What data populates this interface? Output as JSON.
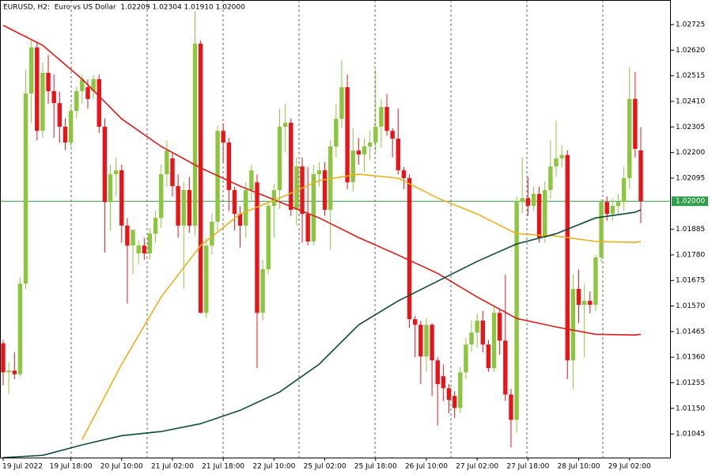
{
  "chart_data": {
    "type": "candlestick",
    "title": "EURUSD, H2:  Euro vs US Dollar  1.02209 1.02304 1.01910 1.02000",
    "up_color": "#8cc63f",
    "down_color": "#e8141a",
    "grid": true,
    "ylim": [
      1.00948,
      1.02826
    ],
    "yticks": [
      1.02725,
      {
        "value": 1.0262,
        "label": "1.02620"
      },
      1.02515,
      {
        "value": 1.0241,
        "label": "1.02410"
      },
      1.02305,
      {
        "value": 1.022,
        "label": "1.02200"
      },
      1.02095,
      1.01885,
      {
        "value": 1.0178,
        "label": "1.01780"
      },
      1.01675,
      {
        "value": 1.0157,
        "label": "1.01570"
      },
      1.01465,
      {
        "value": 1.0136,
        "label": "1.01360"
      },
      1.01255,
      {
        "value": 1.0115,
        "label": "1.01150"
      },
      1.01045
    ],
    "last_price": {
      "value": 1.02,
      "label": "1.02000",
      "color": "#2f9e4a"
    },
    "categories": [
      "19 Jul 2022",
      null,
      null,
      null,
      null,
      null,
      null,
      null,
      null,
      null,
      null,
      null,
      "19 Jul 18:00",
      null,
      null,
      null,
      null,
      null,
      null,
      null,
      null,
      "20 Jul 10:00",
      null,
      null,
      null,
      null,
      null,
      null,
      null,
      null,
      "21 Jul 02:00",
      null,
      null,
      null,
      null,
      null,
      null,
      null,
      null,
      "21 Jul 18:00",
      null,
      null,
      null,
      null,
      null,
      null,
      null,
      null,
      "22 Jul 10:00",
      null,
      null,
      null,
      null,
      null,
      null,
      null,
      null,
      "25 Jul 02:00",
      null,
      null,
      null,
      null,
      null,
      null,
      null,
      null,
      "25 Jul 18:00",
      null,
      null,
      null,
      null,
      null,
      null,
      null,
      null,
      "26 Jul 10:00",
      null,
      null,
      null,
      null,
      null,
      null,
      null,
      null,
      "27 Jul 02:00",
      null,
      null,
      null,
      null,
      null,
      null,
      null,
      null,
      "27 Jul 18:00",
      null,
      null,
      null,
      null,
      null,
      null,
      null,
      null,
      "28 Jul 10:00",
      null,
      null,
      null,
      null,
      null,
      null,
      null,
      null,
      "29 Jul 02:00",
      null,
      null
    ],
    "candles": [
      [
        1.01417,
        1.0143,
        1.01245,
        1.01298
      ],
      [
        1.01298,
        1.0134,
        1.0121,
        1.01305
      ],
      [
        1.01305,
        1.0138,
        1.0127,
        1.0129
      ],
      [
        1.0129,
        1.0169,
        1.0128,
        1.01662
      ],
      [
        1.01662,
        1.0254,
        1.0164,
        1.02442
      ],
      [
        1.02442,
        1.0266,
        1.0232,
        1.02631
      ],
      [
        1.02631,
        1.0265,
        1.0225,
        1.02289
      ],
      [
        1.02289,
        1.0257,
        1.0226,
        1.02527
      ],
      [
        1.02527,
        1.026,
        1.024,
        1.02452
      ],
      [
        1.02452,
        1.0252,
        1.0226,
        1.02403
      ],
      [
        1.02403,
        1.0245,
        1.0224,
        1.02306
      ],
      [
        1.02306,
        1.0234,
        1.0221,
        1.02241
      ],
      [
        1.02241,
        1.024,
        1.0222,
        1.02371
      ],
      [
        1.02371,
        1.0247,
        1.0234,
        1.02452
      ],
      [
        1.02452,
        1.0252,
        1.024,
        1.02501
      ],
      [
        1.02468,
        1.025,
        1.0238,
        1.0242
      ],
      [
        1.02452,
        1.0252,
        1.0242,
        1.02501
      ],
      [
        1.02501,
        1.0252,
        1.0228,
        1.02306
      ],
      [
        1.02306,
        1.0234,
        1.0179,
        1.01997
      ],
      [
        1.01997,
        1.0215,
        1.0188,
        1.02111
      ],
      [
        1.02111,
        1.0218,
        1.0202,
        1.02127
      ],
      [
        1.02127,
        1.0215,
        1.0183,
        1.019
      ],
      [
        1.019,
        1.0193,
        1.0158,
        1.01818
      ],
      [
        1.01818,
        1.0187,
        1.017,
        1.01883
      ],
      [
        1.01786,
        1.0184,
        1.0174,
        1.01818
      ],
      [
        1.01818,
        1.0185,
        1.0176,
        1.01786
      ],
      [
        1.01786,
        1.0189,
        1.0176,
        1.01867
      ],
      [
        1.01867,
        1.0196,
        1.0183,
        1.01932
      ],
      [
        1.01932,
        1.0215,
        1.0189,
        1.02111
      ],
      [
        1.02111,
        1.0225,
        1.0206,
        1.02208
      ],
      [
        1.02176,
        1.022,
        1.0202,
        1.02062
      ],
      [
        1.02062,
        1.0211,
        1.0185,
        1.019
      ],
      [
        1.019,
        1.0208,
        1.0164,
        1.02046
      ],
      [
        1.02046,
        1.021,
        1.0187,
        1.019
      ],
      [
        1.019,
        1.0278,
        1.0186,
        1.02647
      ],
      [
        1.02647,
        1.0266,
        1.0154,
        1.01542
      ],
      [
        1.01542,
        1.0185,
        1.0152,
        1.01818
      ],
      [
        1.01818,
        1.0195,
        1.0178,
        1.01916
      ],
      [
        1.01916,
        1.0231,
        1.0188,
        1.02289
      ],
      [
        1.02289,
        1.0232,
        1.0216,
        1.02241
      ],
      [
        1.02241,
        1.0226,
        1.0196,
        1.02046
      ],
      [
        1.02046,
        1.0206,
        1.0188,
        1.01948
      ],
      [
        1.01948,
        1.0198,
        1.0181,
        1.019
      ],
      [
        1.019,
        1.0208,
        1.0185,
        1.02046
      ],
      [
        1.02046,
        1.0215,
        1.02,
        1.02127
      ],
      [
        1.02078,
        1.0211,
        1.01315,
        1.01542
      ],
      [
        1.01542,
        1.0176,
        1.0151,
        1.01721
      ],
      [
        1.01721,
        1.0199,
        1.017,
        1.01981
      ],
      [
        1.01981,
        1.0207,
        1.0185,
        1.02046
      ],
      [
        1.02046,
        1.0238,
        1.0197,
        1.02306
      ],
      [
        1.02306,
        1.024,
        1.022,
        1.02322
      ],
      [
        1.02322,
        1.0234,
        1.0194,
        1.01965
      ],
      [
        1.01965,
        1.0218,
        1.019,
        1.02143
      ],
      [
        1.02143,
        1.0218,
        1.0183,
        1.01948
      ],
      [
        1.01948,
        1.0214,
        1.0182,
        1.01835
      ],
      [
        1.01835,
        1.0215,
        1.0182,
        1.02111
      ],
      [
        1.02111,
        1.0216,
        1.0206,
        1.02127
      ],
      [
        1.02127,
        1.0216,
        1.0194,
        1.01965
      ],
      [
        1.01965,
        1.0225,
        1.018,
        1.02225
      ],
      [
        1.02225,
        1.024,
        1.0218,
        1.02338
      ],
      [
        1.02338,
        1.0258,
        1.023,
        1.02468
      ],
      [
        1.02468,
        1.0252,
        1.0205,
        1.02078
      ],
      [
        1.02078,
        1.023,
        1.0204,
        1.02208
      ],
      [
        1.02208,
        1.0226,
        1.0215,
        1.02192
      ],
      [
        1.02192,
        1.0226,
        1.0212,
        1.02225
      ],
      [
        1.02225,
        1.0229,
        1.0217,
        1.02241
      ],
      [
        1.02241,
        1.0254,
        1.022,
        1.02306
      ],
      [
        1.02306,
        1.0242,
        1.0222,
        1.02387
      ],
      [
        1.02387,
        1.0244,
        1.0227,
        1.02289
      ],
      [
        1.02289,
        1.023,
        1.0218,
        1.02257
      ],
      [
        1.02257,
        1.0238,
        1.0211,
        1.02127
      ],
      [
        1.02127,
        1.0214,
        1.0205,
        1.02095
      ],
      [
        1.02095,
        1.0211,
        1.0148,
        1.01516
      ],
      [
        1.01516,
        1.0153,
        1.0136,
        1.01493
      ],
      [
        1.01493,
        1.0151,
        1.0125,
        1.01363
      ],
      [
        1.01363,
        1.0152,
        1.013,
        1.01493
      ],
      [
        1.01493,
        1.015,
        1.012,
        1.01347
      ],
      [
        1.01347,
        1.0136,
        1.0108,
        1.0125
      ],
      [
        1.01282,
        1.0133,
        1.0118,
        1.01233
      ],
      [
        1.01233,
        1.0125,
        1.0113,
        1.01185
      ],
      [
        1.01201,
        1.0122,
        1.0111,
        1.01152
      ],
      [
        1.01152,
        1.0132,
        1.0113,
        1.01298
      ],
      [
        1.01298,
        1.0144,
        1.0127,
        1.01412
      ],
      [
        1.01412,
        1.0151,
        1.0138,
        1.01461
      ],
      [
        1.01461,
        1.0154,
        1.014,
        1.0151
      ],
      [
        1.0151,
        1.0155,
        1.0138,
        1.01412
      ],
      [
        1.01412,
        1.0143,
        1.013,
        1.01315
      ],
      [
        1.01315,
        1.0157,
        1.013,
        1.01542
      ],
      [
        1.01542,
        1.0156,
        1.0137,
        1.01428
      ],
      [
        1.01428,
        1.017,
        1.0118,
        1.01207
      ],
      [
        1.01207,
        1.0123,
        1.0099,
        1.01103
      ],
      [
        1.01103,
        1.0202,
        1.0105,
        1.01997
      ],
      [
        1.01997,
        1.0218,
        1.0195,
        1.02013
      ],
      [
        1.02013,
        1.021,
        1.0194,
        1.01981
      ],
      [
        1.01981,
        1.0206,
        1.0196,
        1.0203
      ],
      [
        1.0203,
        1.0206,
        1.0183,
        1.01851
      ],
      [
        1.01851,
        1.0208,
        1.0183,
        1.02046
      ],
      [
        1.02046,
        1.0225,
        1.0201,
        1.02143
      ],
      [
        1.02143,
        1.0233,
        1.021,
        1.02176
      ],
      [
        1.02176,
        1.0223,
        1.0214,
        1.0219
      ],
      [
        1.0219,
        1.0221,
        1.0127,
        1.01347
      ],
      [
        1.01347,
        1.017,
        1.0123,
        1.0164
      ],
      [
        1.0164,
        1.0172,
        1.015,
        1.01575
      ],
      [
        1.01575,
        1.0166,
        1.0136,
        1.01591
      ],
      [
        1.01591,
        1.0163,
        1.0154,
        1.01575
      ],
      [
        1.01575,
        1.0178,
        1.0155,
        1.0177
      ],
      [
        1.0177,
        1.0201,
        1.0175,
        1.01997
      ],
      [
        1.01997,
        1.0202,
        1.0192,
        1.01948
      ],
      [
        1.01948,
        1.0201,
        1.0192,
        1.01981
      ],
      [
        1.01981,
        1.0203,
        1.0195,
        1.01997
      ],
      [
        1.01997,
        1.0214,
        1.0196,
        1.02095
      ],
      [
        1.02095,
        1.0255,
        1.0205,
        1.0242
      ],
      [
        1.0242,
        1.0253,
        1.0218,
        1.02215
      ],
      [
        1.02209,
        1.02304,
        1.0191,
        1.02
      ]
    ],
    "moving_averages": [
      {
        "color": "#dd1c18",
        "x": [
          0,
          7,
          14,
          21,
          28,
          35,
          42,
          49,
          56,
          63,
          70,
          77,
          84,
          91,
          98,
          105,
          112,
          113
        ],
        "values": [
          1.02722,
          1.0264,
          1.02501,
          1.02338,
          1.02225,
          1.02137,
          1.02062,
          1.01997,
          1.01932,
          1.01851,
          1.01779,
          1.01704,
          1.01607,
          1.01519,
          1.01484,
          1.01454,
          1.01451,
          1.01454
        ]
      },
      {
        "color": "#e9b01c",
        "x": [
          0,
          7,
          14,
          21,
          28,
          35,
          42,
          49,
          56,
          63,
          70,
          77,
          84,
          91,
          98,
          105,
          112,
          113
        ],
        "values": [
          null,
          null,
          1.01022,
          1.01331,
          1.01607,
          1.01818,
          1.01948,
          1.02013,
          1.02085,
          1.02111,
          1.02095,
          1.02013,
          1.01948,
          1.01867,
          1.01857,
          1.01835,
          1.01831,
          1.01835
        ]
      },
      {
        "color": "#0d4b3b",
        "x": [
          0,
          7,
          14,
          21,
          28,
          35,
          42,
          49,
          56,
          63,
          70,
          77,
          84,
          91,
          98,
          105,
          112,
          113
        ],
        "values": [
          1.00948,
          1.00957,
          1.01,
          1.01038,
          1.01055,
          1.01087,
          1.01142,
          1.01217,
          1.01331,
          1.01493,
          1.01591,
          1.01672,
          1.01753,
          1.01825,
          1.01867,
          1.01932,
          1.01955,
          1.01965
        ]
      }
    ]
  }
}
